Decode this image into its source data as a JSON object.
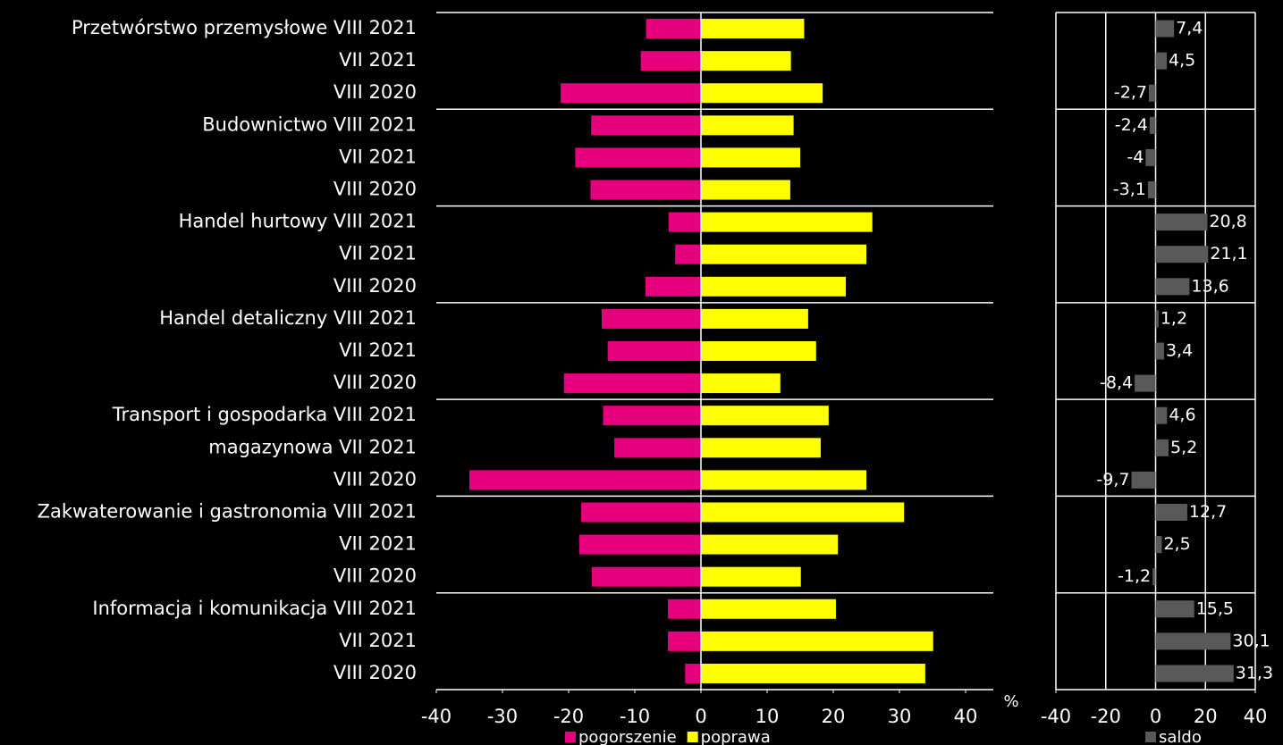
{
  "chart_data": [
    {
      "type": "bar",
      "categories": [
        "Przetwórstwo przemysłowe VIII 2021",
        "VII 2021",
        "VIII 2020",
        "Budownictwo VIII 2021",
        "VII 2021",
        "VIII 2020",
        "Handel hurtowy VIII 2021",
        "VII 2021",
        "VIII 2020",
        "Handel detaliczny VIII 2021",
        "VII 2021",
        "VIII 2020",
        "Transport i gospodarka VIII 2021",
        "magazynowa  VII 2021",
        "VIII 2020",
        "Zakwaterowanie i gastronomia VIII 2021",
        "VII 2021",
        "VIII 2020",
        "Informacja i komunikacja VIII 2021",
        "VII 2021",
        "VIII 2020"
      ],
      "series": [
        {
          "name": "pogorszenie",
          "color": "#e6007e",
          "values": [
            -8.3,
            -9.1,
            -21.2,
            -16.6,
            -19.0,
            -16.7,
            -4.9,
            -3.9,
            -8.4,
            -15.0,
            -14.1,
            -20.7,
            -14.8,
            -13.1,
            -35.0,
            -18.1,
            -18.4,
            -16.5,
            -5.0,
            -5.0,
            -2.4
          ]
        },
        {
          "name": "poprawa",
          "color": "#ffff00",
          "values": [
            15.6,
            13.6,
            18.4,
            14.0,
            15.0,
            13.5,
            25.9,
            25.0,
            21.9,
            16.2,
            17.4,
            12.0,
            19.3,
            18.1,
            25.0,
            30.7,
            20.7,
            15.1,
            20.4,
            35.1,
            33.9
          ]
        }
      ],
      "xlabel": "%",
      "xlim": [
        -40,
        40
      ],
      "xticks": [
        -40,
        -30,
        -20,
        -10,
        0,
        10,
        20,
        30,
        40
      ]
    },
    {
      "type": "bar",
      "series": [
        {
          "name": "saldo",
          "color": "#595959",
          "values": [
            7.4,
            4.5,
            -2.7,
            -2.4,
            -4,
            -3.1,
            20.8,
            21.1,
            13.6,
            1.2,
            3.4,
            -8.4,
            4.6,
            5.2,
            -9.7,
            12.7,
            2.5,
            -1.2,
            15.5,
            30.1,
            31.3
          ],
          "value_labels": [
            "7,4",
            "4,5",
            "-2,7",
            "-2,4",
            "-4",
            "-3,1",
            "20,8",
            "21,1",
            "13,6",
            "1,2",
            "3,4",
            "-8,4",
            "4,6",
            "5,2",
            "-9,7",
            "12,7",
            "2,5",
            "-1,2",
            "15,5",
            "30,1",
            "31,3"
          ]
        }
      ],
      "xlim": [
        -40,
        40
      ],
      "xticks": [
        -40,
        -20,
        0,
        20,
        40
      ],
      "grid": true
    }
  ]
}
